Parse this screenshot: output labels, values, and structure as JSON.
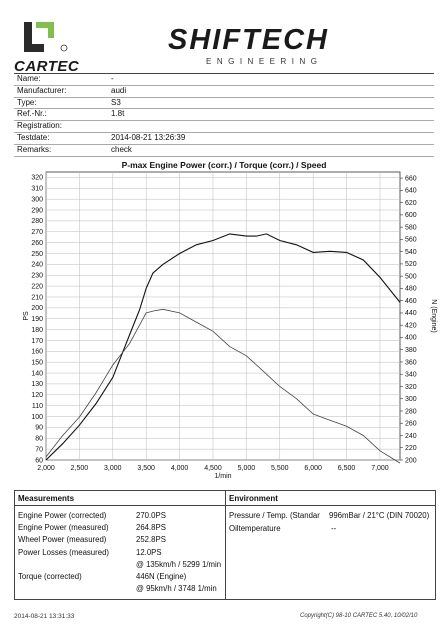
{
  "header": {
    "brand_left": "CARTEC",
    "brand_main": "SHIFTECH",
    "brand_sub": "ENGINEERING"
  },
  "info": [
    {
      "label": "Name:",
      "value": "-"
    },
    {
      "label": "Manufacturer:",
      "value": "audi"
    },
    {
      "label": "Type:",
      "value": "S3"
    },
    {
      "label": "Ref.-Nr.:",
      "value": "1.8t"
    },
    {
      "label": "Registration:",
      "value": ""
    },
    {
      "label": "Testdate:",
      "value": "2014-08-21 13:26:39"
    },
    {
      "label": "Remarks:",
      "value": "check"
    }
  ],
  "chart_data": {
    "type": "line",
    "title": "P-max Engine Power (corr.) / Torque (corr.) / Speed",
    "xlabel": "1/min",
    "ylabel_left": "PS",
    "ylabel_right": "N (Engine)",
    "xlim": [
      2000,
      7300
    ],
    "ylim_left": [
      60,
      325
    ],
    "ylim_right": [
      200,
      670
    ],
    "x_ticks": [
      "2,000",
      "2,500",
      "3,000",
      "3,500",
      "4,000",
      "4,500",
      "5,000",
      "5,500",
      "6,000",
      "6,500",
      "7,000"
    ],
    "y_ticks_left": [
      60,
      70,
      80,
      90,
      100,
      110,
      120,
      130,
      140,
      150,
      160,
      170,
      180,
      190,
      200,
      210,
      220,
      230,
      240,
      250,
      260,
      270,
      280,
      290,
      300,
      310,
      320
    ],
    "y_ticks_right": [
      200,
      220,
      240,
      260,
      280,
      300,
      320,
      340,
      360,
      380,
      400,
      420,
      440,
      460,
      480,
      500,
      520,
      540,
      560,
      580,
      600,
      620,
      640,
      660
    ],
    "grid": true,
    "series": [
      {
        "axis": "left",
        "x": [
          2000,
          2250,
          2500,
          2750,
          3000,
          3250,
          3400,
          3500,
          3600,
          3750,
          4000,
          4250,
          4500,
          4750,
          5000,
          5150,
          5300,
          5500,
          5750,
          6000,
          6250,
          6500,
          6750,
          7000,
          7300
        ],
        "values": [
          60,
          75,
          92,
          112,
          136,
          175,
          198,
          218,
          232,
          240,
          250,
          258,
          262,
          268,
          266,
          266,
          268,
          262,
          258,
          251,
          252,
          251,
          244,
          228,
          205
        ]
      },
      {
        "axis": "right",
        "x": [
          2000,
          2250,
          2500,
          2750,
          3000,
          3250,
          3400,
          3500,
          3600,
          3750,
          4000,
          4250,
          4500,
          4750,
          5000,
          5250,
          5500,
          5750,
          6000,
          6250,
          6500,
          6750,
          7000,
          7300
        ],
        "values": [
          205,
          240,
          270,
          310,
          355,
          390,
          420,
          440,
          443,
          446,
          440,
          425,
          410,
          385,
          370,
          345,
          320,
          300,
          275,
          265,
          255,
          240,
          215,
          195
        ]
      }
    ]
  },
  "measurements": {
    "title": "Measurements",
    "rows": [
      {
        "label": "Engine Power (corrected)",
        "value": "270.0PS"
      },
      {
        "label": "Engine Power (measured)",
        "value": "264.8PS"
      },
      {
        "label": "Wheel Power (measured)",
        "value": "252.8PS"
      },
      {
        "label": "Power Losses (measured)",
        "value": "12.0PS"
      },
      {
        "label": "",
        "value": "@ 135km/h / 5299 1/min"
      },
      {
        "label": "Torque (corrected)",
        "value": "446N (Engine)"
      },
      {
        "label": "",
        "value": "@ 95km/h / 3748 1/min"
      }
    ]
  },
  "environment": {
    "title": "Environment",
    "rows": [
      {
        "label": "Pressure / Temp. (Standar",
        "value": "996mBar / 21°C  (DIN 70020)"
      },
      {
        "label": "Oiltemperature",
        "value": "--"
      }
    ]
  },
  "footer": {
    "left": "2014-08-21 13:31:33",
    "right": "Copyright(C) 98-10 CARTEC 5.40, 10/02/10"
  }
}
